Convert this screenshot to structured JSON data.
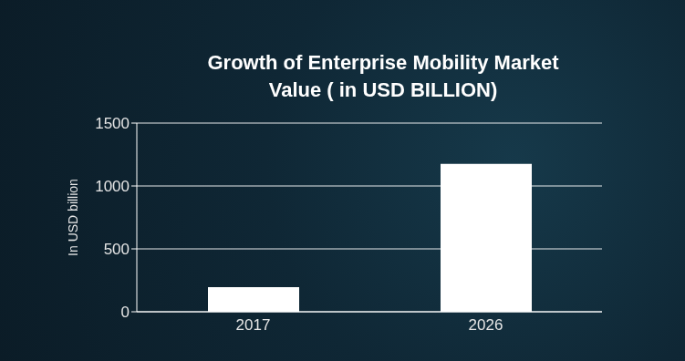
{
  "chart_data": {
    "type": "bar",
    "title": "Growth of Enterprise Mobility Market Value ( in USD BILLION)",
    "y_label": "In USD billion",
    "categories": [
      "2017",
      "2026"
    ],
    "values": [
      195,
      1175
    ],
    "color": "#ffffff",
    "ylim": [
      0,
      1500
    ],
    "yticks": [
      0,
      500,
      1000,
      1500
    ],
    "grid": true,
    "data_labels": false
  }
}
